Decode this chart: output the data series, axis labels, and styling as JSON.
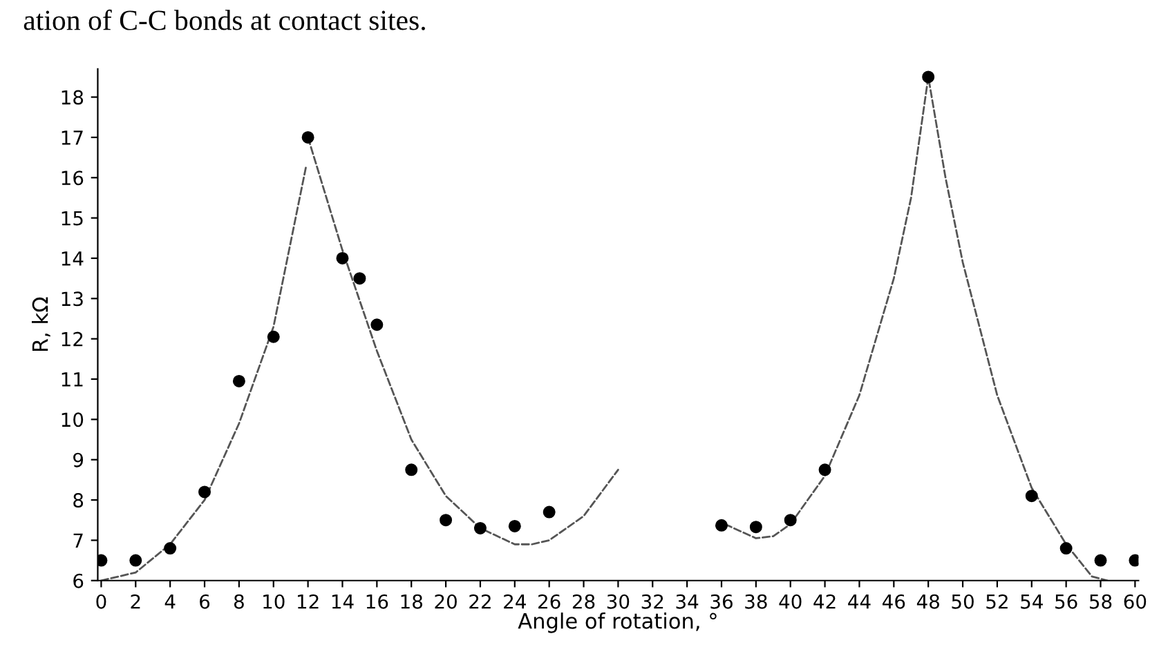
{
  "chart_data": {
    "type": "scatter",
    "xlabel": "Angle of rotation, °",
    "ylabel": "R, kΩ",
    "annotations": [
      "ation of C-C bonds at contact sites."
    ],
    "xlim": [
      -0.2,
      60.2
    ],
    "ylim": [
      6,
      18.7
    ],
    "xticks": [
      0,
      2,
      4,
      6,
      8,
      10,
      12,
      14,
      16,
      18,
      20,
      22,
      24,
      26,
      28,
      30,
      32,
      34,
      36,
      38,
      40,
      42,
      44,
      46,
      48,
      50,
      52,
      54,
      56,
      58,
      60
    ],
    "yticks": [
      6,
      7,
      8,
      9,
      10,
      11,
      12,
      13,
      14,
      15,
      16,
      17,
      18
    ],
    "grid": false,
    "legend": false,
    "series": [
      {
        "color": "#000000",
        "marker": "circle",
        "x": [
          0,
          2,
          4,
          6,
          8,
          10,
          12,
          14,
          15,
          16,
          18,
          20,
          22,
          24,
          26,
          36,
          38,
          40,
          42,
          48,
          54,
          56,
          58,
          60
        ],
        "values": [
          6.5,
          6.5,
          6.8,
          8.2,
          10.95,
          12.05,
          17,
          14,
          13.5,
          12.35,
          8.75,
          7.5,
          7.3,
          7.35,
          7.7,
          7.37,
          7.33,
          7.5,
          8.75,
          18.5,
          8.1,
          6.8,
          6.5,
          6.5
        ]
      },
      {
        "type": "line",
        "color": "#555555",
        "line_style": "dashed",
        "marker": "none",
        "x": [
          0,
          2,
          4,
          6,
          8,
          10,
          11.9,
          11.95,
          12,
          14,
          16,
          18,
          20,
          22,
          24,
          25,
          26,
          28,
          30,
          33,
          36.2,
          38,
          39,
          40,
          42,
          44,
          46,
          47,
          48,
          49,
          50,
          52,
          54,
          56,
          57.5,
          58.4
        ],
        "values": [
          6,
          6.2,
          6.9,
          8,
          9.9,
          12.3,
          16.3,
          null,
          17,
          14.2,
          11.7,
          9.5,
          8.1,
          7.3,
          6.9,
          6.9,
          7.0,
          7.6,
          8.75,
          null,
          7.4,
          7.05,
          7.1,
          7.4,
          8.6,
          10.6,
          13.5,
          15.5,
          18.5,
          16,
          13.9,
          10.6,
          8.3,
          6.9,
          6.1,
          6
        ]
      }
    ]
  }
}
